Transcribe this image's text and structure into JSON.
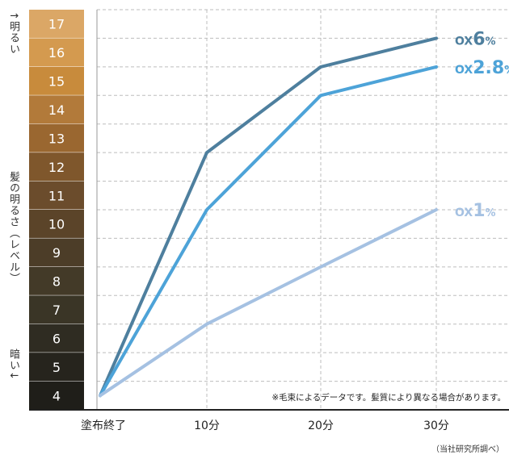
{
  "chart_data": {
    "type": "line",
    "y_axis_label": "髪の明るさ（レベル）",
    "y_top_label": "↑明るい",
    "y_bottom_label": "暗い↓",
    "categories": [
      "塗布終了",
      "10分",
      "20分",
      "30分"
    ],
    "ylim": [
      3.5,
      17.5
    ],
    "y_levels": [
      17,
      16,
      15,
      14,
      13,
      12,
      11,
      10,
      9,
      8,
      7,
      6,
      5,
      4
    ],
    "swatch_colors": [
      "#dba766",
      "#d49a4f",
      "#c88b3c",
      "#b27a3a",
      "#9a6730",
      "#7f572c",
      "#6b4c2c",
      "#5b4429",
      "#4c3d28",
      "#433a28",
      "#3a3526",
      "#2f2c22",
      "#26241d",
      "#1f1e19"
    ],
    "series": [
      {
        "name": "OX 6%",
        "label_prefix": "OX",
        "label_value": "6",
        "label_unit": "%",
        "color": "#4e7f9e",
        "values": [
          4.0,
          12.5,
          15.5,
          16.5
        ]
      },
      {
        "name": "OX 2.8%",
        "label_prefix": "OX",
        "label_value": "2.8",
        "label_unit": "%",
        "color": "#4da3d8",
        "values": [
          4.0,
          10.5,
          14.5,
          15.5
        ]
      },
      {
        "name": "OX 1%",
        "label_prefix": "OX",
        "label_value": "1",
        "label_unit": "%",
        "color": "#a5c1e2",
        "values": [
          4.0,
          6.5,
          8.5,
          10.5
        ]
      }
    ],
    "grid": true,
    "note": "※毛束によるデータです。髪質により異なる場合があります。",
    "source": "（当社研究所調べ）"
  }
}
